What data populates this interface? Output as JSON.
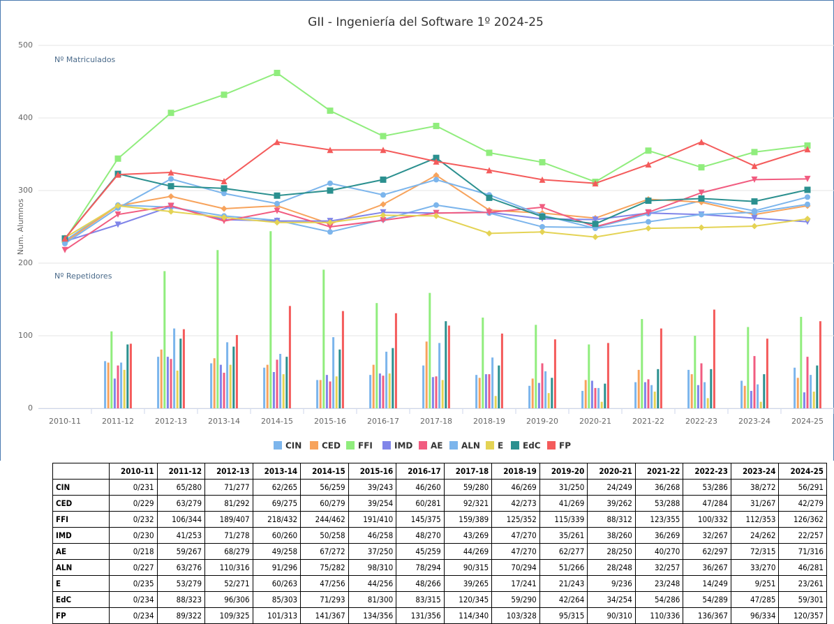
{
  "chart_data": {
    "type": "combo",
    "title": "GII - Ingeniería del Software 1º 2024-25",
    "y_label": "Num. Alumnos",
    "annotations": [
      "Nº Matriculados",
      "Nº Repetidores"
    ],
    "categories": [
      "2010-11",
      "2011-12",
      "2012-13",
      "2013-14",
      "2014-15",
      "2015-16",
      "2016-17",
      "2017-18",
      "2018-19",
      "2019-20",
      "2020-21",
      "2021-22",
      "2022-23",
      "2023-24",
      "2024-25"
    ],
    "ylim": [
      0,
      500
    ],
    "yticks": [
      0,
      100,
      200,
      300,
      400,
      500
    ],
    "grid": true,
    "legend": "bottom",
    "series": [
      {
        "name": "CIN",
        "color": "#7cb5ec",
        "marker": "circle",
        "values": [
          231,
          280,
          277,
          265,
          259,
          243,
          260,
          280,
          269,
          250,
          249,
          268,
          286,
          272,
          291
        ],
        "bar_values": [
          0,
          65,
          71,
          62,
          56,
          39,
          46,
          59,
          46,
          31,
          24,
          36,
          53,
          38,
          56
        ]
      },
      {
        "name": "CED",
        "color": "#f7a35c",
        "marker": "diamond",
        "values": [
          229,
          279,
          292,
          275,
          279,
          254,
          281,
          321,
          273,
          269,
          262,
          288,
          284,
          267,
          279
        ],
        "bar_values": [
          0,
          63,
          81,
          69,
          60,
          39,
          60,
          92,
          42,
          41,
          39,
          53,
          47,
          31,
          42
        ]
      },
      {
        "name": "FFI",
        "color": "#90ed7d",
        "marker": "square",
        "values": [
          232,
          344,
          407,
          432,
          462,
          410,
          375,
          389,
          352,
          339,
          312,
          355,
          332,
          353,
          362
        ],
        "bar_values": [
          0,
          106,
          189,
          218,
          244,
          191,
          145,
          159,
          125,
          115,
          88,
          123,
          100,
          112,
          126
        ]
      },
      {
        "name": "IMD",
        "color": "#8085e9",
        "marker": "triangle-down",
        "values": [
          230,
          253,
          278,
          260,
          258,
          258,
          270,
          269,
          270,
          261,
          260,
          269,
          267,
          262,
          257
        ],
        "bar_values": [
          0,
          41,
          71,
          60,
          50,
          46,
          48,
          43,
          47,
          35,
          38,
          36,
          32,
          24,
          22
        ]
      },
      {
        "name": "AE",
        "color": "#f15c80",
        "marker": "triangle-down",
        "values": [
          218,
          267,
          279,
          258,
          272,
          250,
          259,
          269,
          270,
          277,
          250,
          270,
          297,
          315,
          316
        ],
        "bar_values": [
          0,
          59,
          68,
          49,
          67,
          37,
          45,
          44,
          47,
          62,
          28,
          40,
          62,
          72,
          71
        ]
      },
      {
        "name": "ALN",
        "color": "#7cb5ec",
        "marker": "circle",
        "values": [
          227,
          276,
          316,
          296,
          282,
          310,
          294,
          315,
          294,
          266,
          248,
          257,
          267,
          270,
          281
        ],
        "bar_values": [
          0,
          63,
          110,
          91,
          75,
          98,
          78,
          90,
          70,
          51,
          28,
          32,
          36,
          33,
          46
        ]
      },
      {
        "name": "E",
        "color": "#e4d354",
        "marker": "diamond",
        "values": [
          235,
          279,
          271,
          263,
          256,
          256,
          266,
          265,
          241,
          243,
          236,
          248,
          249,
          251,
          261
        ],
        "bar_values": [
          0,
          53,
          52,
          60,
          47,
          44,
          48,
          39,
          17,
          21,
          9,
          23,
          14,
          9,
          23
        ]
      },
      {
        "name": "EdC",
        "color": "#2b908f",
        "marker": "square",
        "values": [
          234,
          323,
          306,
          303,
          293,
          300,
          315,
          345,
          290,
          264,
          254,
          286,
          289,
          285,
          301
        ],
        "bar_values": [
          0,
          88,
          96,
          85,
          71,
          81,
          83,
          120,
          59,
          42,
          34,
          54,
          54,
          47,
          59
        ]
      },
      {
        "name": "FP",
        "color": "#f45b5b",
        "marker": "triangle",
        "values": [
          234,
          322,
          325,
          313,
          367,
          356,
          356,
          340,
          328,
          315,
          310,
          336,
          367,
          334,
          357
        ],
        "bar_values": [
          0,
          89,
          109,
          101,
          141,
          134,
          131,
          114,
          103,
          95,
          90,
          110,
          136,
          96,
          120
        ]
      }
    ]
  },
  "table": {
    "rows": [
      [
        "0/231",
        "65/280",
        "71/277",
        "62/265",
        "56/259",
        "39/243",
        "46/260",
        "59/280",
        "46/269",
        "31/250",
        "24/249",
        "36/268",
        "53/286",
        "38/272",
        "56/291"
      ],
      [
        "0/229",
        "63/279",
        "81/292",
        "69/275",
        "60/279",
        "39/254",
        "60/281",
        "92/321",
        "42/273",
        "41/269",
        "39/262",
        "53/288",
        "47/284",
        "31/267",
        "42/279"
      ],
      [
        "0/232",
        "106/344",
        "189/407",
        "218/432",
        "244/462",
        "191/410",
        "145/375",
        "159/389",
        "125/352",
        "115/339",
        "88/312",
        "123/355",
        "100/332",
        "112/353",
        "126/362"
      ],
      [
        "0/230",
        "41/253",
        "71/278",
        "60/260",
        "50/258",
        "46/258",
        "48/270",
        "43/269",
        "47/270",
        "35/261",
        "38/260",
        "36/269",
        "32/267",
        "24/262",
        "22/257"
      ],
      [
        "0/218",
        "59/267",
        "68/279",
        "49/258",
        "67/272",
        "37/250",
        "45/259",
        "44/269",
        "47/270",
        "62/277",
        "28/250",
        "40/270",
        "62/297",
        "72/315",
        "71/316"
      ],
      [
        "0/227",
        "63/276",
        "110/316",
        "91/296",
        "75/282",
        "98/310",
        "78/294",
        "90/315",
        "70/294",
        "51/266",
        "28/248",
        "32/257",
        "36/267",
        "33/270",
        "46/281"
      ],
      [
        "0/235",
        "53/279",
        "52/271",
        "60/263",
        "47/256",
        "44/256",
        "48/266",
        "39/265",
        "17/241",
        "21/243",
        "9/236",
        "23/248",
        "14/249",
        "9/251",
        "23/261"
      ],
      [
        "0/234",
        "88/323",
        "96/306",
        "85/303",
        "71/293",
        "81/300",
        "83/315",
        "120/345",
        "59/290",
        "42/264",
        "34/254",
        "54/286",
        "54/289",
        "47/285",
        "59/301"
      ],
      [
        "0/234",
        "89/322",
        "109/325",
        "101/313",
        "141/367",
        "134/356",
        "131/356",
        "114/340",
        "103/328",
        "95/315",
        "90/310",
        "110/336",
        "136/367",
        "96/334",
        "120/357"
      ]
    ]
  }
}
